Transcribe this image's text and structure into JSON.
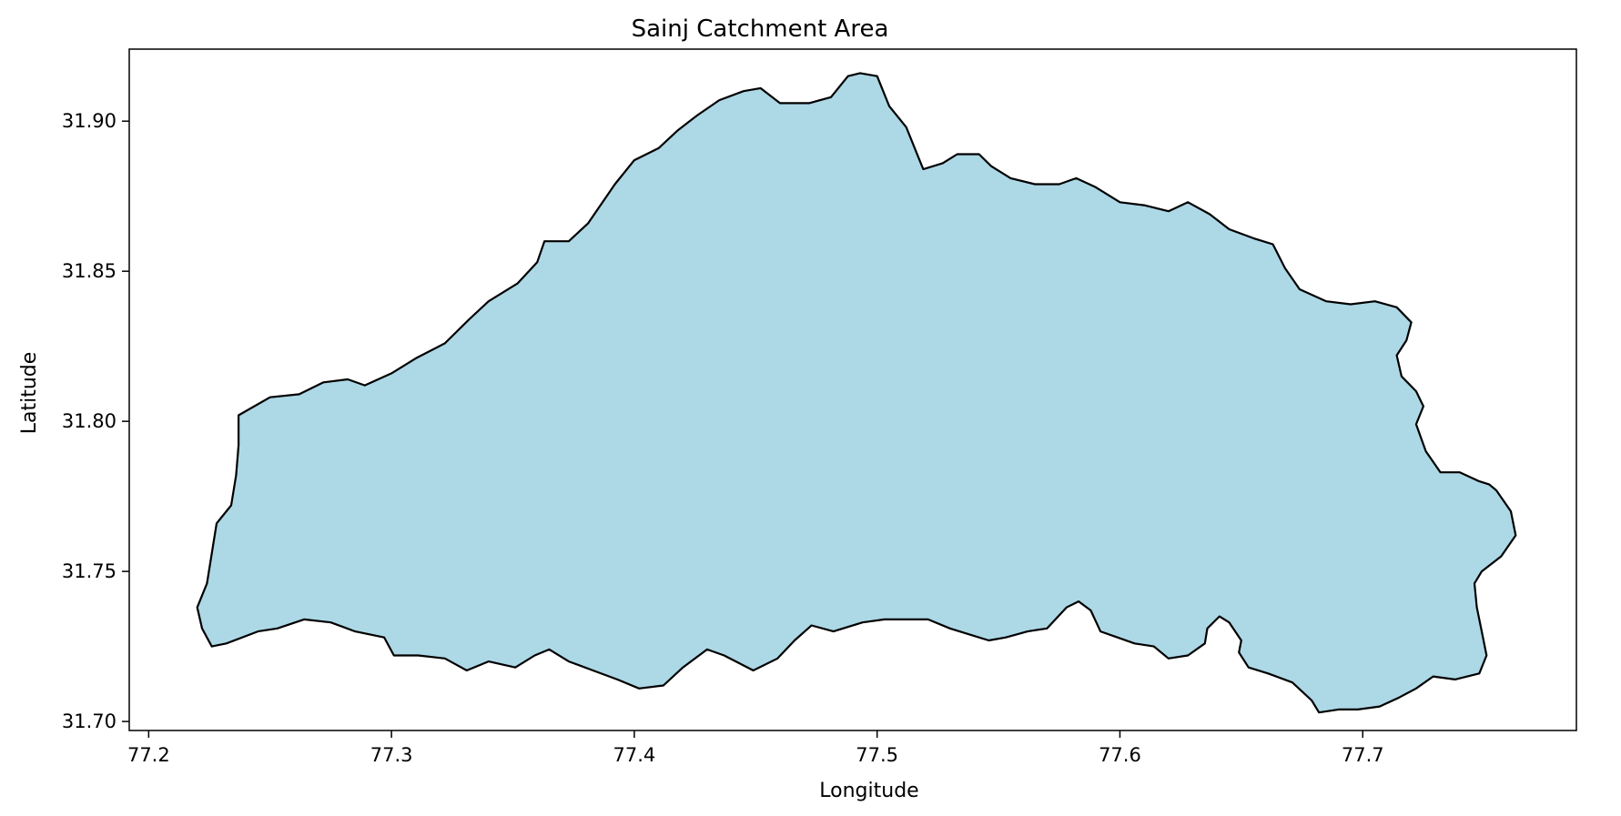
{
  "chart_data": {
    "type": "area",
    "title": "Sainj Catchment Area",
    "xlabel": "Longitude",
    "ylabel": "Latitude",
    "xlim": [
      77.192,
      77.788
    ],
    "ylim": [
      31.697,
      31.924
    ],
    "xticks": [
      77.2,
      77.3,
      77.4,
      77.5,
      77.6,
      77.7
    ],
    "xtick_labels": [
      "77.2",
      "77.3",
      "77.4",
      "77.5",
      "77.6",
      "77.7"
    ],
    "yticks": [
      31.7,
      31.75,
      31.8,
      31.85,
      31.9
    ],
    "ytick_labels": [
      "31.70",
      "31.75",
      "31.80",
      "31.85",
      "31.90"
    ],
    "grid": false,
    "fill_color": "#add8e6",
    "edge_color": "#000000",
    "boundary": [
      [
        77.237,
        31.802
      ],
      [
        77.25,
        31.808
      ],
      [
        77.262,
        31.809
      ],
      [
        77.272,
        31.813
      ],
      [
        77.282,
        31.814
      ],
      [
        77.289,
        31.812
      ],
      [
        77.3,
        31.816
      ],
      [
        77.31,
        31.821
      ],
      [
        77.322,
        31.826
      ],
      [
        77.332,
        31.834
      ],
      [
        77.34,
        31.84
      ],
      [
        77.352,
        31.846
      ],
      [
        77.36,
        31.853
      ],
      [
        77.363,
        31.86
      ],
      [
        77.373,
        31.86
      ],
      [
        77.381,
        31.866
      ],
      [
        77.392,
        31.879
      ],
      [
        77.4,
        31.887
      ],
      [
        77.41,
        31.891
      ],
      [
        77.418,
        31.897
      ],
      [
        77.426,
        31.902
      ],
      [
        77.435,
        31.907
      ],
      [
        77.445,
        31.91
      ],
      [
        77.452,
        31.911
      ],
      [
        77.46,
        31.906
      ],
      [
        77.472,
        31.906
      ],
      [
        77.481,
        31.908
      ],
      [
        77.488,
        31.915
      ],
      [
        77.493,
        31.916
      ],
      [
        77.5,
        31.915
      ],
      [
        77.505,
        31.905
      ],
      [
        77.512,
        31.898
      ],
      [
        77.517,
        31.888
      ],
      [
        77.519,
        31.884
      ],
      [
        77.527,
        31.886
      ],
      [
        77.533,
        31.889
      ],
      [
        77.542,
        31.889
      ],
      [
        77.547,
        31.885
      ],
      [
        77.555,
        31.881
      ],
      [
        77.565,
        31.879
      ],
      [
        77.575,
        31.879
      ],
      [
        77.582,
        31.881
      ],
      [
        77.59,
        31.878
      ],
      [
        77.6,
        31.873
      ],
      [
        77.61,
        31.872
      ],
      [
        77.62,
        31.87
      ],
      [
        77.628,
        31.873
      ],
      [
        77.637,
        31.869
      ],
      [
        77.645,
        31.864
      ],
      [
        77.655,
        31.861
      ],
      [
        77.663,
        31.859
      ],
      [
        77.668,
        31.851
      ],
      [
        77.674,
        31.844
      ],
      [
        77.685,
        31.84
      ],
      [
        77.695,
        31.839
      ],
      [
        77.705,
        31.84
      ],
      [
        77.714,
        31.838
      ],
      [
        77.72,
        31.833
      ],
      [
        77.718,
        31.827
      ],
      [
        77.714,
        31.822
      ],
      [
        77.716,
        31.815
      ],
      [
        77.722,
        31.81
      ],
      [
        77.725,
        31.805
      ],
      [
        77.722,
        31.799
      ],
      [
        77.726,
        31.79
      ],
      [
        77.732,
        31.783
      ],
      [
        77.74,
        31.783
      ],
      [
        77.748,
        31.78
      ],
      [
        77.752,
        31.779
      ],
      [
        77.755,
        31.777
      ],
      [
        77.761,
        31.77
      ],
      [
        77.763,
        31.762
      ],
      [
        77.757,
        31.755
      ],
      [
        77.749,
        31.75
      ],
      [
        77.746,
        31.746
      ],
      [
        77.747,
        31.738
      ],
      [
        77.749,
        31.73
      ],
      [
        77.751,
        31.722
      ],
      [
        77.748,
        31.716
      ],
      [
        77.738,
        31.714
      ],
      [
        77.729,
        31.715
      ],
      [
        77.722,
        31.711
      ],
      [
        77.715,
        31.708
      ],
      [
        77.707,
        31.705
      ],
      [
        77.698,
        31.704
      ],
      [
        77.69,
        31.704
      ],
      [
        77.682,
        31.703
      ],
      [
        77.679,
        31.707
      ],
      [
        77.671,
        31.713
      ],
      [
        77.661,
        31.716
      ],
      [
        77.653,
        31.718
      ],
      [
        77.649,
        31.723
      ],
      [
        77.65,
        31.727
      ],
      [
        77.645,
        31.733
      ],
      [
        77.641,
        31.735
      ],
      [
        77.636,
        31.731
      ],
      [
        77.635,
        31.726
      ],
      [
        77.628,
        31.722
      ],
      [
        77.62,
        31.721
      ],
      [
        77.614,
        31.725
      ],
      [
        77.606,
        31.726
      ],
      [
        77.599,
        31.728
      ],
      [
        77.592,
        31.73
      ],
      [
        77.588,
        31.737
      ],
      [
        77.583,
        31.74
      ],
      [
        77.578,
        31.738
      ],
      [
        77.57,
        31.731
      ],
      [
        77.562,
        31.73
      ],
      [
        77.553,
        31.728
      ],
      [
        77.546,
        31.727
      ],
      [
        77.538,
        31.729
      ],
      [
        77.53,
        31.731
      ],
      [
        77.521,
        31.734
      ],
      [
        77.513,
        31.734
      ],
      [
        77.503,
        31.734
      ],
      [
        77.494,
        31.733
      ],
      [
        77.482,
        31.73
      ],
      [
        77.473,
        31.732
      ],
      [
        77.466,
        31.727
      ],
      [
        77.459,
        31.721
      ],
      [
        77.449,
        31.717
      ],
      [
        77.437,
        31.722
      ],
      [
        77.43,
        31.724
      ],
      [
        77.42,
        31.718
      ],
      [
        77.412,
        31.712
      ],
      [
        77.402,
        31.711
      ],
      [
        77.393,
        31.714
      ],
      [
        77.383,
        31.717
      ],
      [
        77.373,
        31.72
      ],
      [
        77.365,
        31.724
      ],
      [
        77.359,
        31.722
      ],
      [
        77.351,
        31.718
      ],
      [
        77.34,
        31.72
      ],
      [
        77.331,
        31.717
      ],
      [
        77.322,
        31.721
      ],
      [
        77.311,
        31.722
      ],
      [
        77.301,
        31.722
      ],
      [
        77.297,
        31.728
      ],
      [
        77.285,
        31.73
      ],
      [
        77.275,
        31.733
      ],
      [
        77.264,
        31.734
      ],
      [
        77.253,
        31.731
      ],
      [
        77.245,
        31.73
      ],
      [
        77.232,
        31.726
      ],
      [
        77.226,
        31.725
      ],
      [
        77.222,
        31.731
      ],
      [
        77.22,
        31.738
      ],
      [
        77.224,
        31.746
      ],
      [
        77.226,
        31.756
      ],
      [
        77.228,
        31.766
      ],
      [
        77.234,
        31.772
      ],
      [
        77.236,
        31.782
      ],
      [
        77.237,
        31.792
      ]
    ]
  }
}
